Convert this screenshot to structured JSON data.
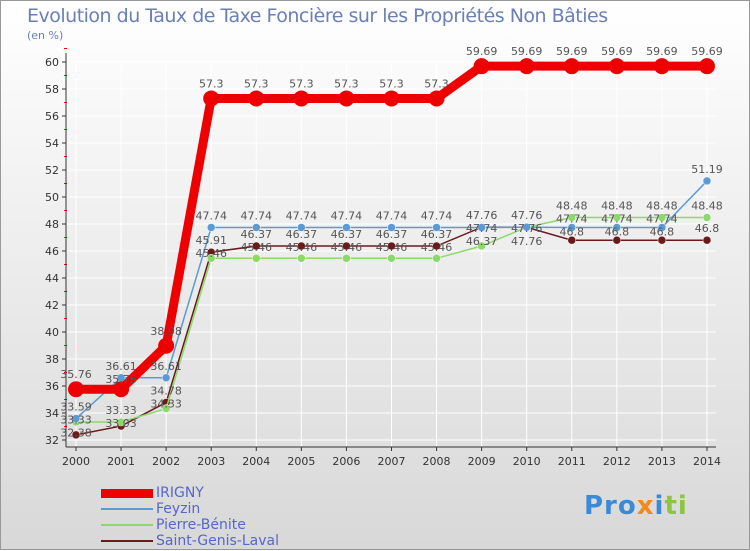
{
  "title": "Evolution du Taux de Taxe Foncière sur les Propriétés Non Bâties",
  "unit": "(en %)",
  "logo": "Proxiti",
  "chart_data": {
    "type": "line",
    "title": "Evolution du Taux de Taxe Foncière sur les Propriétés Non Bâties",
    "ylabel": "(en %)",
    "ylim": [
      32,
      60
    ],
    "yticks": [
      32,
      34,
      36,
      38,
      40,
      42,
      44,
      46,
      48,
      50,
      52,
      54,
      56,
      58,
      60
    ],
    "x": [
      2000,
      2001,
      2002,
      2003,
      2004,
      2005,
      2006,
      2007,
      2008,
      2009,
      2010,
      2011,
      2012,
      2013,
      2014
    ],
    "series": [
      {
        "name": "IRIGNY",
        "color": "#ee0000",
        "values": [
          35.76,
          35.76,
          38.98,
          57.3,
          57.3,
          57.3,
          57.3,
          57.3,
          57.3,
          59.69,
          59.69,
          59.69,
          59.69,
          59.69,
          59.69
        ]
      },
      {
        "name": "Feyzin",
        "color": "#5b9bd5",
        "values": [
          33.59,
          36.61,
          36.61,
          47.74,
          47.74,
          47.74,
          47.74,
          47.74,
          47.74,
          47.74,
          47.76,
          47.74,
          47.74,
          47.74,
          51.19
        ]
      },
      {
        "name": "Pierre-Bénite",
        "color": "#8cd96a",
        "values": [
          33.33,
          33.33,
          34.33,
          45.46,
          45.46,
          45.46,
          45.46,
          45.46,
          45.46,
          46.37,
          47.76,
          48.48,
          48.48,
          48.48,
          48.48
        ]
      },
      {
        "name": "Saint-Genis-Laval",
        "color": "#6b1a1a",
        "values": [
          32.38,
          33.03,
          34.78,
          45.91,
          46.37,
          46.37,
          46.37,
          46.37,
          46.37,
          47.76,
          47.76,
          46.8,
          46.8,
          46.8,
          46.8
        ]
      }
    ],
    "legend": "bottom-left"
  }
}
